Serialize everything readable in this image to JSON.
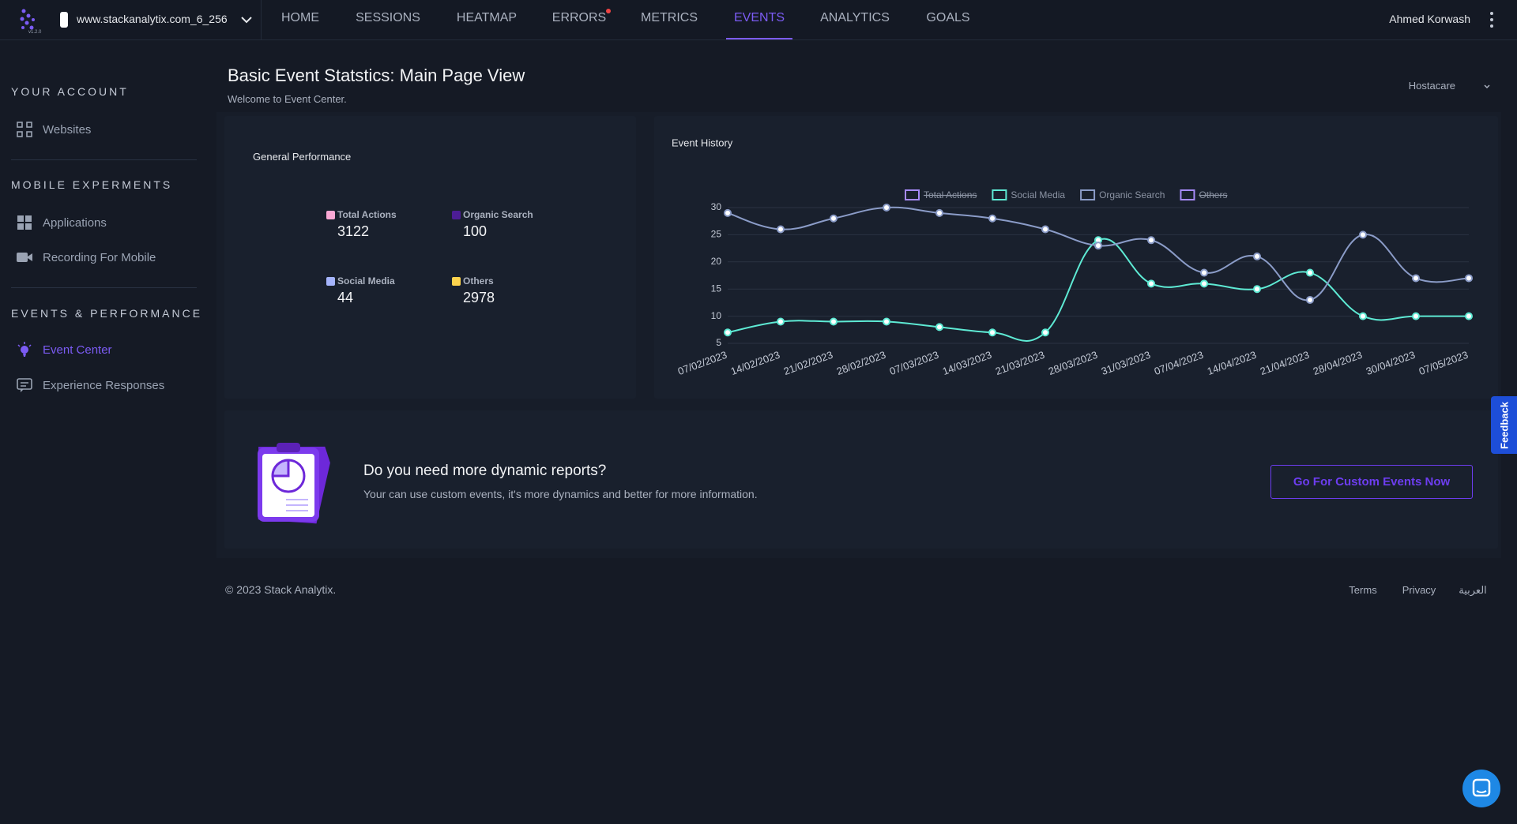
{
  "nav": {
    "logo_version": "v1.2.0",
    "site": "www.stackanalytix.com_6_256",
    "items": [
      "HOME",
      "SESSIONS",
      "HEATMAP",
      "ERRORS",
      "METRICS",
      "EVENTS",
      "ANALYTICS",
      "GOALS"
    ],
    "user": "Ahmed Korwash"
  },
  "sidebar": {
    "sections": [
      {
        "title": "YOUR ACCOUNT",
        "items": [
          "Websites"
        ]
      },
      {
        "title": "MOBILE EXPERMENTS",
        "items": [
          "Applications",
          "Recording For Mobile"
        ]
      },
      {
        "title": "EVENTS & PERFORMANCE",
        "items": [
          "Event Center",
          "Experience Responses"
        ]
      }
    ]
  },
  "header": {
    "title": "Basic Event Statstics: Main Page View",
    "subtitle": "Welcome to Event Center.",
    "dropdown": "Hostacare"
  },
  "stats": {
    "title": "General Performance",
    "items": [
      {
        "label": "Total Actions",
        "value": "3122",
        "color": "#f9a8d4"
      },
      {
        "label": "Organic Search",
        "value": "100",
        "color": "#4c1d95"
      },
      {
        "label": "Social Media",
        "value": "44",
        "color": "#a5b4fc"
      },
      {
        "label": "Others",
        "value": "2978",
        "color": "#fcd34d"
      }
    ]
  },
  "chart_data": {
    "type": "line",
    "title": "Event History",
    "categories": [
      "07/02/2023",
      "14/02/2023",
      "21/02/2023",
      "28/02/2023",
      "07/03/2023",
      "14/03/2023",
      "21/03/2023",
      "28/03/2023",
      "31/03/2023",
      "07/04/2023",
      "14/04/2023",
      "21/04/2023",
      "28/04/2023",
      "30/04/2023",
      "07/05/2023"
    ],
    "series": [
      {
        "name": "Total Actions",
        "color": "#a78bfa",
        "hidden": true
      },
      {
        "name": "Social Media",
        "color": "#5eead4",
        "values": [
          7,
          9,
          9,
          9,
          8,
          7,
          7,
          24,
          16,
          16,
          15,
          18,
          10,
          10,
          10
        ]
      },
      {
        "name": "Organic Search",
        "color": "#8b9cc8",
        "values": [
          29,
          26,
          28,
          30,
          29,
          28,
          26,
          23,
          24,
          18,
          21,
          13,
          25,
          17,
          17
        ]
      },
      {
        "name": "Others",
        "color": "#a78bfa",
        "hidden": true
      }
    ],
    "ylim": [
      5,
      30
    ],
    "yticks": [
      5,
      10,
      15,
      20,
      25,
      30
    ],
    "grid": true
  },
  "promo": {
    "title": "Do you need more dynamic reports?",
    "text": "Your can use custom events, it's more dynamics and better for more information.",
    "button": "Go For Custom Events Now"
  },
  "footer": {
    "copyright": "© 2023 Stack Analytix.",
    "links": [
      "Terms",
      "Privacy",
      "العربية"
    ]
  },
  "feedback": "Feedback"
}
